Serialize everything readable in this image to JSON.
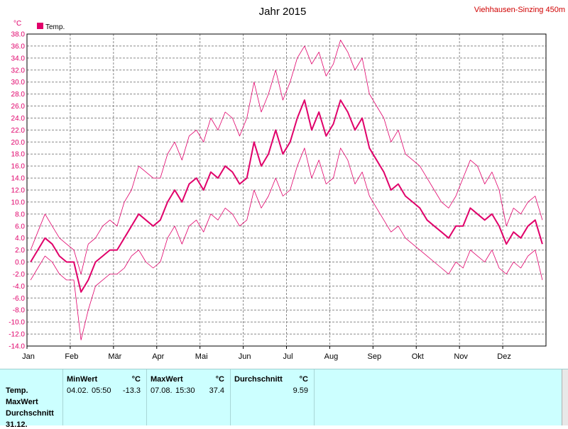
{
  "chart_data": {
    "type": "line",
    "title": "Jahr 2015",
    "station": "Viehhausen-Sinzing 450m",
    "unit": "°C",
    "legend": [
      "Temp."
    ],
    "legend_position": "top-left",
    "grid": true,
    "ylim": [
      -14,
      38
    ],
    "yticks": [
      "38.0",
      "36.0",
      "34.0",
      "32.0",
      "30.0",
      "28.0",
      "26.0",
      "24.0",
      "22.0",
      "20.0",
      "18.0",
      "16.0",
      "14.0",
      "12.0",
      "10.0",
      "8.0",
      "6.0",
      "4.0",
      "2.0",
      "0.0",
      "-2.0",
      "-4.0",
      "-6.0",
      "-8.0",
      "-10.0",
      "-12.0",
      "-14.0"
    ],
    "months": [
      "Jan",
      "Feb",
      "Mär",
      "Apr",
      "Mai",
      "Jun",
      "Jul",
      "Aug",
      "Sep",
      "Okt",
      "Nov",
      "Dez"
    ],
    "series": [
      {
        "name": "Temp.",
        "role": "daily_max",
        "color": "#e0006a",
        "values_by_month": [
          [
            2,
            5,
            8,
            6,
            4,
            3
          ],
          [
            2,
            -2,
            3,
            4,
            6,
            7
          ],
          [
            6,
            10,
            12,
            16,
            15,
            14
          ],
          [
            14,
            18,
            20,
            17,
            21,
            22
          ],
          [
            20,
            24,
            22,
            25,
            24,
            21
          ],
          [
            24,
            30,
            25,
            28,
            32,
            27
          ],
          [
            30,
            34,
            36,
            33,
            35,
            31
          ],
          [
            33,
            37,
            35,
            32,
            34,
            28
          ],
          [
            26,
            24,
            20,
            22,
            18,
            17
          ],
          [
            16,
            14,
            12,
            10,
            9,
            11
          ],
          [
            14,
            17,
            16,
            13,
            15,
            12
          ],
          [
            6,
            9,
            8,
            10,
            11,
            7
          ]
        ]
      },
      {
        "name": "Temp.",
        "role": "daily_mean",
        "color": "#e0006a",
        "values_by_month": [
          [
            0,
            2,
            4,
            3,
            1,
            0
          ],
          [
            0,
            -5,
            -3,
            0,
            1,
            2
          ],
          [
            2,
            4,
            6,
            8,
            7,
            6
          ],
          [
            7,
            10,
            12,
            10,
            13,
            14
          ],
          [
            12,
            15,
            14,
            16,
            15,
            13
          ],
          [
            14,
            20,
            16,
            18,
            22,
            18
          ],
          [
            20,
            24,
            27,
            22,
            25,
            21
          ],
          [
            23,
            27,
            25,
            22,
            24,
            19
          ],
          [
            17,
            15,
            12,
            13,
            11,
            10
          ],
          [
            9,
            7,
            6,
            5,
            4,
            6
          ],
          [
            6,
            9,
            8,
            7,
            8,
            6
          ],
          [
            3,
            5,
            4,
            6,
            7,
            3
          ]
        ]
      },
      {
        "name": "Temp.",
        "role": "daily_min",
        "color": "#e0006a",
        "values_by_month": [
          [
            -3,
            -1,
            1,
            0,
            -2,
            -3
          ],
          [
            -3,
            -13,
            -8,
            -4,
            -3,
            -2
          ],
          [
            -2,
            -1,
            1,
            2,
            0,
            -1
          ],
          [
            0,
            4,
            6,
            3,
            6,
            7
          ],
          [
            5,
            8,
            7,
            9,
            8,
            6
          ],
          [
            7,
            12,
            9,
            11,
            14,
            11
          ],
          [
            12,
            16,
            19,
            14,
            17,
            13
          ],
          [
            14,
            19,
            17,
            13,
            15,
            11
          ],
          [
            9,
            7,
            5,
            6,
            4,
            3
          ],
          [
            2,
            1,
            0,
            -1,
            -2,
            0
          ],
          [
            -1,
            2,
            1,
            0,
            2,
            -1
          ],
          [
            -2,
            0,
            -1,
            1,
            2,
            -3
          ]
        ]
      }
    ]
  },
  "stats": {
    "row_labels": [
      "Temp.",
      "MaxWert",
      "Durchschnitt",
      "31.12."
    ],
    "min": {
      "header": "MinWert",
      "unit": "°C",
      "date": "04.02.",
      "time": "05:50",
      "value": "-13.3"
    },
    "max": {
      "header": "MaxWert",
      "unit": "°C",
      "date": "07.08.",
      "time": "15:30",
      "value": "37.4"
    },
    "avg": {
      "header": "Durchschnitt",
      "unit": "°C",
      "value": "9.59"
    }
  }
}
